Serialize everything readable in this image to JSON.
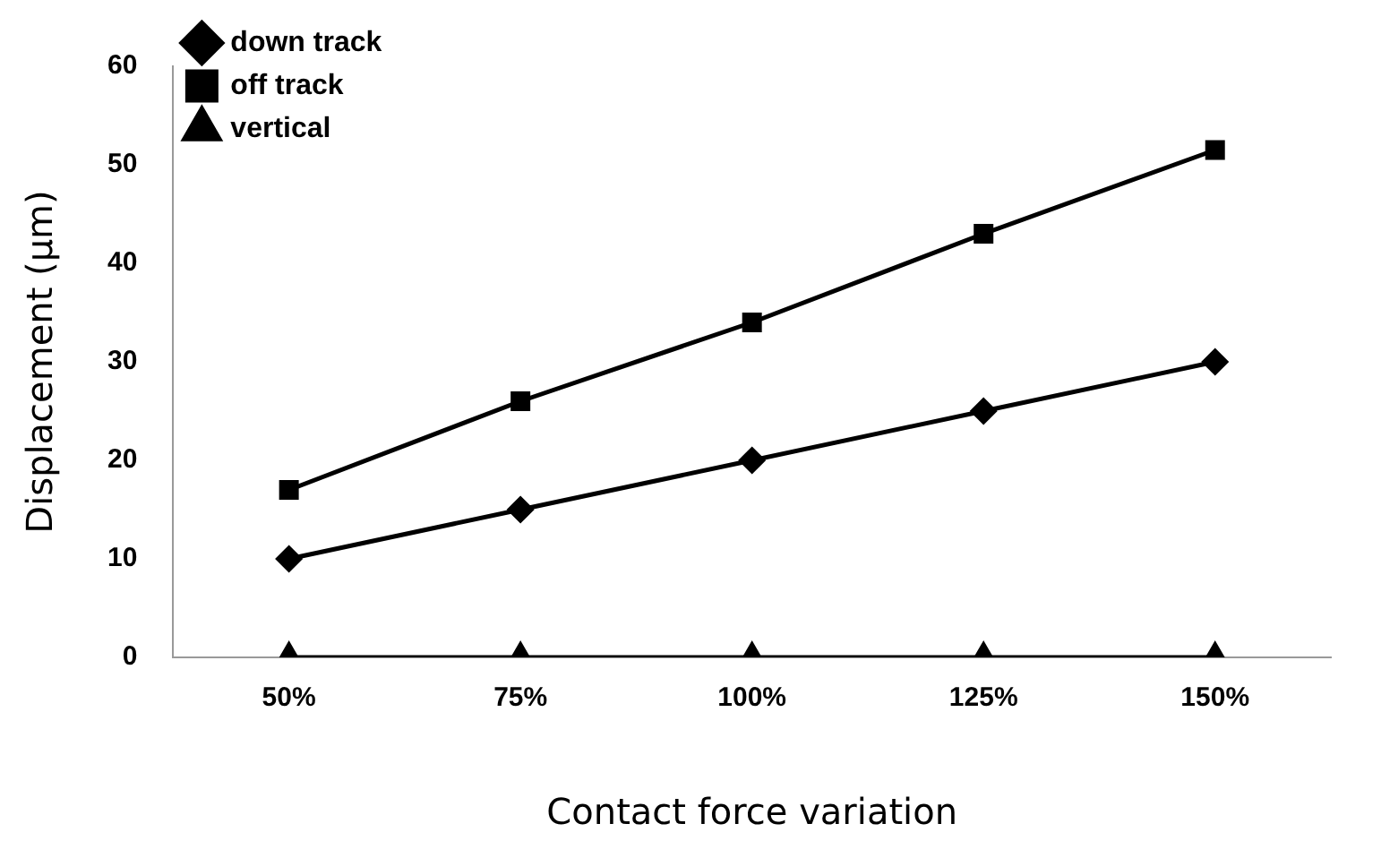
{
  "chart_data": {
    "type": "line",
    "xlabel": "Contact force variation",
    "ylabel": "Displacement (µm)",
    "categories": [
      "50%",
      "75%",
      "100%",
      "125%",
      "150%"
    ],
    "series": [
      {
        "name": "down track",
        "color": "#000000",
        "marker": "diamond",
        "values": [
          10,
          15,
          20,
          25,
          30
        ]
      },
      {
        "name": "off track",
        "color": "#000000",
        "marker": "square",
        "values": [
          17,
          26,
          34,
          43,
          51.5
        ]
      },
      {
        "name": "vertical",
        "color": "#000000",
        "marker": "triangle",
        "values": [
          0,
          0,
          0,
          0,
          0
        ]
      }
    ],
    "ylim": [
      0,
      60
    ],
    "yticks": [
      0,
      10,
      20,
      30,
      40,
      50,
      60
    ],
    "grid": false,
    "legend": "top left",
    "line_style": "solid"
  }
}
